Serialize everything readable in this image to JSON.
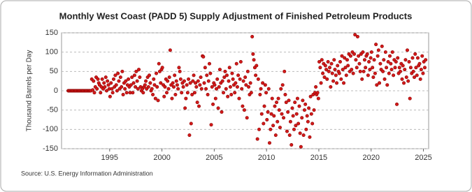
{
  "chart_data": {
    "type": "scatter",
    "title": "Monthly West Coast (PADD 5) Supply Adjustment of Finished Petroleum Products",
    "y_label": "Thousand Barrels per Day",
    "source": "Source: U.S. Energy Information Administration",
    "color": "#d21a1a",
    "xlim": [
      1990.4,
      2025.5
    ],
    "xticks": [
      1995,
      2000,
      2005,
      2010,
      2015,
      2020,
      2025
    ],
    "ylim": [
      -150,
      150
    ],
    "yticks": [
      -150,
      -100,
      -50,
      0,
      50,
      100,
      150
    ],
    "grid": true,
    "x": [
      1991.04,
      1991.13,
      1991.21,
      1991.29,
      1991.38,
      1991.46,
      1991.54,
      1991.63,
      1991.71,
      1991.79,
      1991.88,
      1991.96,
      1992.04,
      1992.13,
      1992.21,
      1992.29,
      1992.38,
      1992.46,
      1992.54,
      1992.63,
      1992.71,
      1992.79,
      1992.88,
      1992.96,
      1993.04,
      1993.13,
      1993.21,
      1993.29,
      1993.38,
      1993.46,
      1993.54,
      1993.63,
      1993.71,
      1993.79,
      1993.88,
      1993.96,
      1994.04,
      1994.13,
      1994.21,
      1994.29,
      1994.38,
      1994.46,
      1994.54,
      1994.63,
      1994.71,
      1994.79,
      1994.88,
      1994.96,
      1995.04,
      1995.13,
      1995.21,
      1995.29,
      1995.38,
      1995.46,
      1995.54,
      1995.63,
      1995.71,
      1995.79,
      1995.88,
      1995.96,
      1996.04,
      1996.13,
      1996.21,
      1996.29,
      1996.38,
      1996.46,
      1996.54,
      1996.63,
      1996.71,
      1996.79,
      1996.88,
      1996.96,
      1997.04,
      1997.13,
      1997.21,
      1997.29,
      1997.38,
      1997.46,
      1997.54,
      1997.63,
      1997.71,
      1997.79,
      1997.88,
      1997.96,
      1998.04,
      1998.13,
      1998.21,
      1998.29,
      1998.38,
      1998.46,
      1998.54,
      1998.63,
      1998.71,
      1998.79,
      1998.88,
      1998.96,
      1999.04,
      1999.13,
      1999.21,
      1999.29,
      1999.38,
      1999.46,
      1999.54,
      1999.63,
      1999.71,
      1999.79,
      1999.88,
      1999.96,
      2000.04,
      2000.13,
      2000.21,
      2000.29,
      2000.38,
      2000.46,
      2000.54,
      2000.63,
      2000.71,
      2000.79,
      2000.88,
      2000.96,
      2001.04,
      2001.13,
      2001.21,
      2001.29,
      2001.38,
      2001.46,
      2001.54,
      2001.63,
      2001.71,
      2001.79,
      2001.88,
      2001.96,
      2002.04,
      2002.13,
      2002.21,
      2002.29,
      2002.38,
      2002.46,
      2002.54,
      2002.63,
      2002.71,
      2002.79,
      2002.88,
      2002.96,
      2003.04,
      2003.13,
      2003.21,
      2003.29,
      2003.38,
      2003.46,
      2003.54,
      2003.63,
      2003.71,
      2003.79,
      2003.88,
      2003.96,
      2004.04,
      2004.13,
      2004.21,
      2004.29,
      2004.38,
      2004.46,
      2004.54,
      2004.63,
      2004.71,
      2004.79,
      2004.88,
      2004.96,
      2005.04,
      2005.13,
      2005.21,
      2005.29,
      2005.38,
      2005.46,
      2005.54,
      2005.63,
      2005.71,
      2005.79,
      2005.88,
      2005.96,
      2006.04,
      2006.13,
      2006.21,
      2006.29,
      2006.38,
      2006.46,
      2006.54,
      2006.63,
      2006.71,
      2006.79,
      2006.88,
      2006.96,
      2007.04,
      2007.13,
      2007.21,
      2007.29,
      2007.38,
      2007.46,
      2007.54,
      2007.63,
      2007.71,
      2007.79,
      2007.88,
      2007.96,
      2008.04,
      2008.13,
      2008.21,
      2008.29,
      2008.38,
      2008.46,
      2008.54,
      2008.63,
      2008.71,
      2008.79,
      2008.88,
      2008.96,
      2009.04,
      2009.13,
      2009.21,
      2009.29,
      2009.38,
      2009.46,
      2009.54,
      2009.63,
      2009.71,
      2009.79,
      2009.88,
      2009.96,
      2010.04,
      2010.13,
      2010.21,
      2010.29,
      2010.38,
      2010.46,
      2010.54,
      2010.63,
      2010.71,
      2010.79,
      2010.88,
      2010.96,
      2011.04,
      2011.13,
      2011.21,
      2011.29,
      2011.38,
      2011.46,
      2011.54,
      2011.63,
      2011.71,
      2011.79,
      2011.88,
      2011.96,
      2012.04,
      2012.13,
      2012.21,
      2012.29,
      2012.38,
      2012.46,
      2012.54,
      2012.63,
      2012.71,
      2012.79,
      2012.88,
      2012.96,
      2013.04,
      2013.13,
      2013.21,
      2013.29,
      2013.38,
      2013.46,
      2013.54,
      2013.63,
      2013.71,
      2013.79,
      2013.88,
      2013.96,
      2014.04,
      2014.13,
      2014.21,
      2014.29,
      2014.38,
      2014.46,
      2014.54,
      2014.63,
      2014.71,
      2014.79,
      2014.88,
      2014.96,
      2015.04,
      2015.13,
      2015.21,
      2015.29,
      2015.38,
      2015.46,
      2015.54,
      2015.63,
      2015.71,
      2015.79,
      2015.88,
      2015.96,
      2016.04,
      2016.13,
      2016.21,
      2016.29,
      2016.38,
      2016.46,
      2016.54,
      2016.63,
      2016.71,
      2016.79,
      2016.88,
      2016.96,
      2017.04,
      2017.13,
      2017.21,
      2017.29,
      2017.38,
      2017.46,
      2017.54,
      2017.63,
      2017.71,
      2017.79,
      2017.88,
      2017.96,
      2018.04,
      2018.13,
      2018.21,
      2018.29,
      2018.38,
      2018.46,
      2018.54,
      2018.63,
      2018.71,
      2018.79,
      2018.88,
      2018.96,
      2019.04,
      2019.13,
      2019.21,
      2019.29,
      2019.38,
      2019.46,
      2019.54,
      2019.63,
      2019.71,
      2019.79,
      2019.88,
      2019.96,
      2020.04,
      2020.13,
      2020.21,
      2020.29,
      2020.38,
      2020.46,
      2020.54,
      2020.63,
      2020.71,
      2020.79,
      2020.88,
      2020.96,
      2021.04,
      2021.13,
      2021.21,
      2021.29,
      2021.38,
      2021.46,
      2021.54,
      2021.63,
      2021.71,
      2021.79,
      2021.88,
      2021.96,
      2022.04,
      2022.13,
      2022.21,
      2022.29,
      2022.38,
      2022.46,
      2022.54,
      2022.63,
      2022.71,
      2022.79,
      2022.88,
      2022.96,
      2023.04,
      2023.13,
      2023.21,
      2023.29,
      2023.38,
      2023.46,
      2023.54,
      2023.63,
      2023.71,
      2023.79,
      2023.88,
      2023.96,
      2024.04,
      2024.13,
      2024.21,
      2024.29,
      2024.38,
      2024.46,
      2024.54,
      2024.63,
      2024.71,
      2024.79,
      2024.88,
      2024.96,
      2025.04,
      2025.13,
      2025.21
    ],
    "values": [
      0,
      0,
      0,
      0,
      0,
      0,
      0,
      0,
      0,
      0,
      0,
      0,
      0,
      0,
      0,
      0,
      0,
      0,
      0,
      0,
      0,
      0,
      0,
      0,
      0,
      0,
      0,
      30,
      2,
      25,
      -5,
      10,
      35,
      5,
      30,
      20,
      15,
      -5,
      10,
      30,
      5,
      20,
      10,
      35,
      0,
      25,
      15,
      5,
      -15,
      20,
      5,
      -5,
      30,
      10,
      40,
      15,
      0,
      45,
      25,
      5,
      35,
      10,
      50,
      -10,
      20,
      5,
      25,
      -5,
      15,
      30,
      10,
      -5,
      15,
      35,
      -5,
      20,
      40,
      10,
      50,
      25,
      5,
      55,
      35,
      10,
      0,
      5,
      -5,
      10,
      15,
      25,
      5,
      35,
      10,
      40,
      20,
      0,
      5,
      -10,
      30,
      15,
      -20,
      45,
      10,
      -25,
      70,
      50,
      20,
      55,
      60,
      15,
      -15,
      10,
      30,
      -5,
      25,
      5,
      35,
      105,
      15,
      -20,
      20,
      10,
      40,
      -10,
      25,
      15,
      5,
      60,
      50,
      30,
      -5,
      20,
      10,
      25,
      -45,
      -20,
      15,
      -5,
      30,
      -115,
      20,
      -85,
      -10,
      25,
      40,
      -5,
      20,
      10,
      -30,
      25,
      -40,
      15,
      35,
      5,
      90,
      88,
      20,
      60,
      5,
      40,
      -10,
      25,
      70,
      45,
      -88,
      10,
      -35,
      20,
      15,
      -20,
      5,
      30,
      -45,
      10,
      55,
      20,
      -55,
      25,
      -5,
      35,
      50,
      5,
      40,
      -15,
      25,
      60,
      10,
      -10,
      45,
      30,
      15,
      -5,
      20,
      70,
      10,
      40,
      -20,
      30,
      75,
      5,
      -40,
      25,
      -50,
      35,
      15,
      -70,
      50,
      10,
      -10,
      20,
      -5,
      140,
      95,
      80,
      60,
      40,
      65,
      -125,
      30,
      -100,
      -10,
      5,
      -60,
      20,
      -85,
      -40,
      15,
      -5,
      -75,
      -55,
      5,
      -135,
      -100,
      -60,
      -20,
      -90,
      -65,
      -40,
      -115,
      -30,
      -80,
      -20,
      -50,
      -95,
      5,
      -60,
      15,
      -70,
      50,
      -10,
      -30,
      -105,
      -55,
      -25,
      -115,
      -80,
      -140,
      -45,
      -65,
      -100,
      -30,
      -90,
      -60,
      -20,
      -85,
      -40,
      -110,
      -145,
      -70,
      -25,
      -115,
      -50,
      -35,
      -100,
      -65,
      -80,
      -45,
      -120,
      -15,
      -60,
      -85,
      -10,
      -50,
      -5,
      10,
      -10,
      -5,
      -20,
      75,
      60,
      20,
      80,
      45,
      70,
      35,
      65,
      55,
      30,
      75,
      50,
      60,
      10,
      70,
      45,
      25,
      80,
      55,
      40,
      20,
      65,
      50,
      45,
      75,
      30,
      90,
      55,
      20,
      85,
      60,
      40,
      80,
      65,
      95,
      50,
      90,
      55,
      100,
      45,
      95,
      145,
      80,
      60,
      140,
      90,
      70,
      50,
      95,
      30,
      100,
      50,
      80,
      60,
      90,
      95,
      40,
      75,
      55,
      85,
      100,
      60,
      35,
      80,
      45,
      120,
      15,
      90,
      105,
      20,
      70,
      55,
      115,
      50,
      80,
      30,
      100,
      60,
      15,
      75,
      45,
      90,
      70,
      55,
      100,
      40,
      80,
      60,
      75,
      -35,
      85,
      45,
      60,
      50,
      70,
      30,
      65,
      20,
      55,
      80,
      35,
      105,
      25,
      75,
      -20,
      60,
      45,
      85,
      50,
      35,
      95,
      60,
      40,
      85,
      65,
      70,
      30,
      55,
      90,
      45,
      75,
      60,
      80
    ]
  }
}
